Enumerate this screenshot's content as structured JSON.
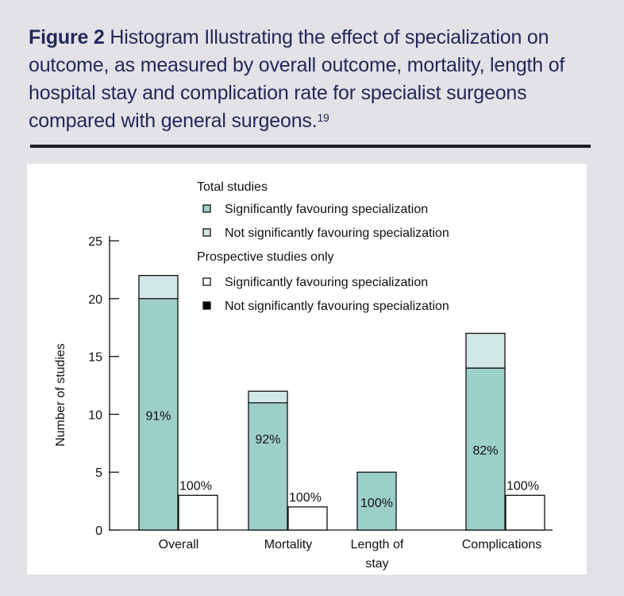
{
  "caption": {
    "label": "Figure 2",
    "text": "Histogram Illustrating the effect of specialization on outcome, as measured by overall outcome, mortality, length of hospital stay and complication rate for specialist surgeons compared with general surgeons.",
    "superscript": "19"
  },
  "colors": {
    "background": "#e3e2e7",
    "caption_text": "#24285a",
    "sig_total": "#9dcfc9",
    "nonsig_total": "#d2e8e6",
    "prospective_sig": "#ffffff",
    "prospective_nonsig": "#000000"
  },
  "chart_data": {
    "type": "bar",
    "ylabel": "Number of studies",
    "xlabel": "",
    "ylim": [
      0,
      25
    ],
    "yticks": [
      0,
      5,
      10,
      15,
      20,
      25
    ],
    "categories": [
      "Overall",
      "Mortality",
      "Length of stay",
      "Complications"
    ],
    "legend": {
      "groups": [
        {
          "title": "Total studies",
          "items": [
            "Significantly favouring specialization",
            "Not significantly favouring specialization"
          ]
        },
        {
          "title": "Prospective studies only",
          "items": [
            "Significantly favouring specialization",
            "Not significantly favouring specialization"
          ]
        }
      ],
      "placement": "top-center"
    },
    "total_studies": {
      "significant": [
        20,
        11,
        5,
        14
      ],
      "not_significant": [
        2,
        1,
        0,
        3
      ],
      "percent_labels": [
        "91%",
        "92%",
        "100%",
        "82%"
      ]
    },
    "prospective_studies": {
      "significant": [
        3,
        2,
        null,
        3
      ],
      "not_significant": [
        0,
        0,
        null,
        0
      ],
      "percent_labels": [
        "100%",
        "100%",
        null,
        "100%"
      ]
    }
  }
}
